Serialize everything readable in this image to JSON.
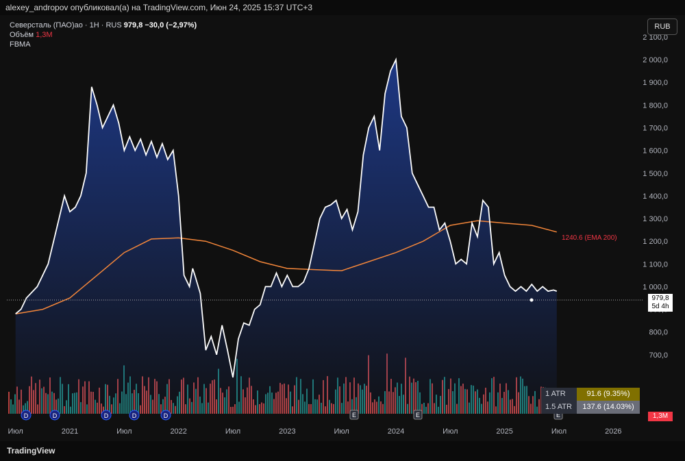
{
  "header": {
    "publisher_line": "alexey_andropov опубликовал(а) на TradingView.com, Июн 24, 2025 15:37 UTC+3"
  },
  "legend": {
    "symbol": "Северсталь (ПАО)ао · 1Н · RUS",
    "last": "979,8",
    "change": "−30,0 (−2,97%)",
    "volume_label": "Объём",
    "volume_value": "1,3M",
    "indicator": "FBMA"
  },
  "currency_button": "RUB",
  "footer": {
    "brand": "TradingView"
  },
  "atr": [
    {
      "label": "1 ATR",
      "value": "91.6 (9.35%)",
      "color": "#807000"
    },
    {
      "label": "1.5 ATR",
      "value": "137.6 (14.03%)",
      "color": "#6a6d78"
    }
  ],
  "price_tag": {
    "price": "979,8",
    "countdown": "5d 4h"
  },
  "volume_tag": "1,3M",
  "ema_label": "1240.6 (EMA 200)",
  "colors": {
    "price_line": "#ffffff",
    "area_top": "#1e3a8a",
    "ema": "#f5873a",
    "vol_up": "#26a69a",
    "vol_down": "#ef5350"
  },
  "chart_data": {
    "type": "area",
    "y_ticks": [
      "700,0",
      "800,0",
      "900,0",
      "1 000,0",
      "1 100,0",
      "1 200,0",
      "1 300,0",
      "1 400,0",
      "1 500,0",
      "1 600,0",
      "1 700,0",
      "1 800,0",
      "1 900,0",
      "2 000,0",
      "2 100,0"
    ],
    "x_ticks": [
      "Июл",
      "2021",
      "Июл",
      "2022",
      "Июл",
      "2023",
      "Июл",
      "2024",
      "Июл",
      "2025",
      "Июл",
      "2026"
    ],
    "ylim": [
      440,
      2130
    ],
    "series": [
      {
        "x": [
          2020.5,
          2020.55,
          2020.6,
          2020.7,
          2020.8,
          2020.9,
          2020.95,
          2021.0,
          2021.05,
          2021.1,
          2021.15,
          2021.2,
          2021.25,
          2021.3,
          2021.4,
          2021.45,
          2021.5,
          2021.55,
          2021.6,
          2021.65,
          2021.7,
          2021.75,
          2021.8,
          2021.85,
          2021.9,
          2021.95,
          2022.0,
          2022.05,
          2022.1,
          2022.13,
          2022.15,
          2022.2,
          2022.25,
          2022.3,
          2022.35,
          2022.4,
          2022.45,
          2022.5,
          2022.55,
          2022.6,
          2022.65,
          2022.7,
          2022.75,
          2022.8,
          2022.85,
          2022.9,
          2022.95,
          2023.0,
          2023.05,
          2023.1,
          2023.15,
          2023.2,
          2023.3,
          2023.35,
          2023.4,
          2023.45,
          2023.5,
          2023.55,
          2023.6,
          2023.65,
          2023.7,
          2023.75,
          2023.8,
          2023.85,
          2023.9,
          2023.95,
          2024.0,
          2024.05,
          2024.1,
          2024.15,
          2024.2,
          2024.25,
          2024.3,
          2024.35,
          2024.4,
          2024.45,
          2024.5,
          2024.55,
          2024.6,
          2024.65,
          2024.7,
          2024.75,
          2024.8,
          2024.85,
          2024.9,
          2024.95,
          2025.0,
          2025.05,
          2025.1,
          2025.15,
          2025.2,
          2025.25,
          2025.3,
          2025.35,
          2025.4,
          2025.45,
          2025.48
        ],
        "y": [
          880,
          900,
          950,
          1000,
          1100,
          1300,
          1400,
          1330,
          1350,
          1400,
          1500,
          1880,
          1800,
          1700,
          1800,
          1720,
          1600,
          1660,
          1600,
          1650,
          1580,
          1640,
          1570,
          1630,
          1560,
          1600,
          1400,
          1050,
          1000,
          1080,
          1050,
          970,
          720,
          780,
          700,
          830,
          720,
          600,
          770,
          840,
          830,
          900,
          920,
          1000,
          1000,
          1060,
          1000,
          1050,
          1000,
          1000,
          1020,
          1080,
          1300,
          1350,
          1360,
          1380,
          1300,
          1340,
          1250,
          1330,
          1580,
          1700,
          1750,
          1600,
          1850,
          1950,
          2000,
          1750,
          1700,
          1500,
          1450,
          1400,
          1350,
          1350,
          1250,
          1280,
          1200,
          1100,
          1120,
          1100,
          1280,
          1220,
          1380,
          1350,
          1100,
          1150,
          1050,
          1000,
          980,
          1000,
          980,
          1010,
          980,
          1000,
          980,
          985,
          979.8
        ]
      },
      {
        "name": "EMA 200",
        "x": [
          2020.5,
          2020.75,
          2021.0,
          2021.25,
          2021.5,
          2021.75,
          2022.0,
          2022.25,
          2022.5,
          2022.75,
          2023.0,
          2023.25,
          2023.5,
          2023.75,
          2024.0,
          2024.25,
          2024.5,
          2024.75,
          2025.0,
          2025.25,
          2025.48
        ],
        "y": [
          880,
          900,
          950,
          1050,
          1150,
          1210,
          1215,
          1200,
          1160,
          1110,
          1080,
          1075,
          1070,
          1110,
          1150,
          1200,
          1270,
          1290,
          1280,
          1270,
          1240.6
        ]
      }
    ]
  }
}
